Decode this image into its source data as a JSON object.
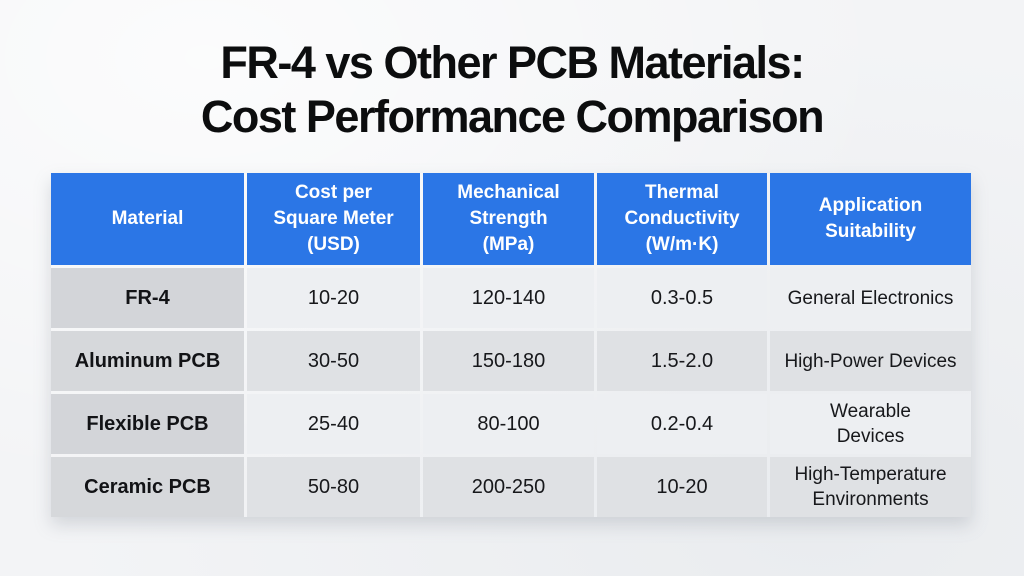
{
  "title": {
    "line1": "FR-4 vs Other PCB Materials:",
    "line2": "Cost Performance Comparison"
  },
  "table": {
    "columns": [
      "Material",
      "Cost per\nSquare Meter\n(USD)",
      "Mechanical\nStrength\n(MPa)",
      "Thermal\nConductivity\n(W/m·K)",
      "Application\nSuitability"
    ],
    "rows": [
      {
        "material": "FR-4",
        "cost": "10-20",
        "strength": "120-140",
        "conductivity": "0.3-0.5",
        "application": "General Electronics"
      },
      {
        "material": "Aluminum PCB",
        "cost": "30-50",
        "strength": "150-180",
        "conductivity": "1.5-2.0",
        "application": "High-Power Devices"
      },
      {
        "material": "Flexible PCB",
        "cost": "25-40",
        "strength": "80-100",
        "conductivity": "0.2-0.4",
        "application": "Wearable\nDevices"
      },
      {
        "material": "Ceramic PCB",
        "cost": "50-80",
        "strength": "200-250",
        "conductivity": "10-20",
        "application": "High-Temperature\nEnvironments"
      }
    ]
  },
  "chart_data": {
    "type": "table",
    "title": "FR-4 vs Other PCB Materials: Cost Performance Comparison",
    "columns": [
      "Material",
      "Cost per Square Meter (USD)",
      "Mechanical Strength (MPa)",
      "Thermal Conductivity (W/m·K)",
      "Application Suitability"
    ],
    "rows": [
      [
        "FR-4",
        "10-20",
        "120-140",
        "0.3-0.5",
        "General Electronics"
      ],
      [
        "Aluminum PCB",
        "30-50",
        "150-180",
        "1.5-2.0",
        "High-Power Devices"
      ],
      [
        "Flexible PCB",
        "25-40",
        "80-100",
        "0.2-0.4",
        "Wearable Devices"
      ],
      [
        "Ceramic PCB",
        "50-80",
        "200-250",
        "10-20",
        "High-Temperature Environments"
      ]
    ]
  },
  "colors": {
    "header_blue": "#2b76e6",
    "material_column_gray": "#d3d5d9",
    "row_light": "#edeff2",
    "row_dark": "#dfe1e4",
    "background": "#f3f4f6",
    "title_text": "#0c0d0e",
    "header_text": "#ffffff",
    "body_text": "#17181b"
  }
}
